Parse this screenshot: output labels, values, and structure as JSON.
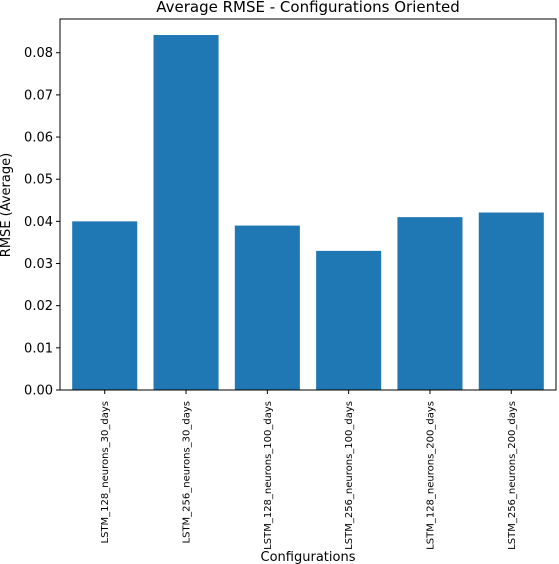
{
  "chart_data": {
    "type": "bar",
    "title": "Average RMSE - Configurations Oriented",
    "xlabel": "Configurations",
    "ylabel": "RMSE (Average)",
    "categories": [
      "LSTM_128_neurons_30_days",
      "LSTM_256_neurons_30_days",
      "LSTM_128_neurons_100_days",
      "LSTM_256_neurons_100_days",
      "LSTM_128_neurons_200_days",
      "LSTM_256_neurons_200_days"
    ],
    "values": [
      0.04,
      0.0842,
      0.039,
      0.033,
      0.041,
      0.0421
    ],
    "ylim": [
      0,
      0.088
    ],
    "yticks": [
      "0.00",
      "0.01",
      "0.02",
      "0.03",
      "0.04",
      "0.05",
      "0.06",
      "0.07",
      "0.08"
    ],
    "grid": false,
    "colors": {
      "bar": "#1f77b4",
      "axis": "#000000"
    }
  }
}
